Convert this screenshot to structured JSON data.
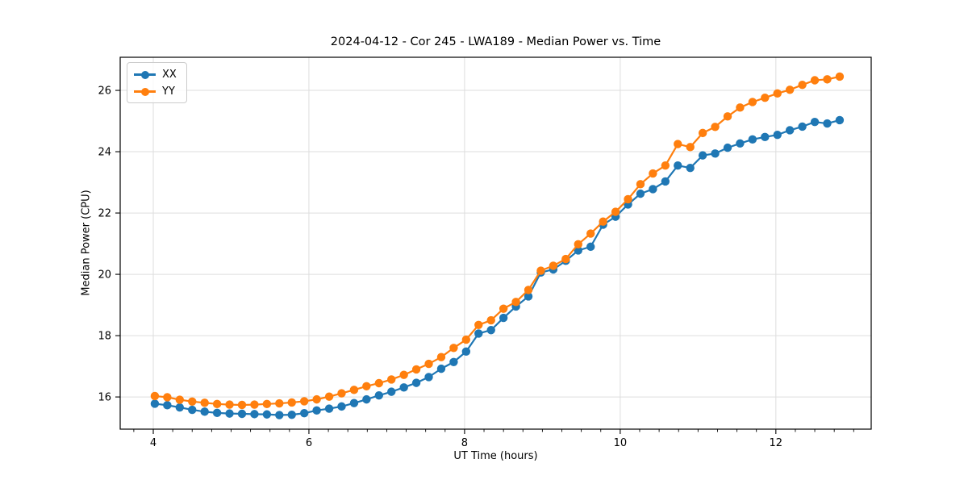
{
  "chart_data": {
    "type": "line",
    "title": "2024-04-12 - Cor 245 - LWA189 - Median Power vs. Time",
    "xlabel": "UT Time (hours)",
    "ylabel": "Median Power (CPU)",
    "xlim": [
      3.575,
      13.225
    ],
    "ylim": [
      14.95,
      27.08
    ],
    "x_ticks": [
      4,
      6,
      8,
      10,
      12
    ],
    "y_ticks": [
      16,
      18,
      20,
      22,
      24,
      26
    ],
    "x_minor_tick_step": 0.25,
    "grid": true,
    "legend_position": "upper left",
    "x": [
      4.02,
      4.18,
      4.34,
      4.5,
      4.66,
      4.82,
      4.98,
      5.14,
      5.3,
      5.46,
      5.62,
      5.78,
      5.94,
      6.1,
      6.26,
      6.42,
      6.58,
      6.74,
      6.9,
      7.06,
      7.22,
      7.38,
      7.54,
      7.7,
      7.86,
      8.02,
      8.18,
      8.34,
      8.5,
      8.66,
      8.82,
      8.98,
      9.14,
      9.3,
      9.46,
      9.62,
      9.78,
      9.94,
      10.1,
      10.26,
      10.42,
      10.58,
      10.74,
      10.9,
      11.06,
      11.22,
      11.38,
      11.54,
      11.7,
      11.86,
      12.02,
      12.18,
      12.34,
      12.5,
      12.66,
      12.82
    ],
    "series": [
      {
        "name": "XX",
        "color": "#1f77b4",
        "marker": "circle",
        "values": [
          15.78,
          15.73,
          15.66,
          15.58,
          15.52,
          15.48,
          15.46,
          15.45,
          15.44,
          15.43,
          15.41,
          15.42,
          15.47,
          15.56,
          15.62,
          15.69,
          15.8,
          15.92,
          16.05,
          16.17,
          16.31,
          16.46,
          16.65,
          16.92,
          17.14,
          17.48,
          18.07,
          18.18,
          18.58,
          18.95,
          19.28,
          20.06,
          20.16,
          20.44,
          20.78,
          20.9,
          21.62,
          21.88,
          22.28,
          22.63,
          22.78,
          23.03,
          23.55,
          23.47,
          23.88,
          23.94,
          24.13,
          24.27,
          24.4,
          24.48,
          24.55,
          24.7,
          24.82,
          24.97,
          24.92,
          25.03
        ]
      },
      {
        "name": "YY",
        "color": "#ff7f0e",
        "marker": "circle",
        "values": [
          16.03,
          15.99,
          15.91,
          15.85,
          15.81,
          15.77,
          15.75,
          15.74,
          15.75,
          15.77,
          15.79,
          15.82,
          15.86,
          15.92,
          16.01,
          16.12,
          16.23,
          16.35,
          16.45,
          16.57,
          16.72,
          16.9,
          17.08,
          17.3,
          17.6,
          17.87,
          18.35,
          18.5,
          18.88,
          19.1,
          19.49,
          20.12,
          20.28,
          20.5,
          20.98,
          21.33,
          21.72,
          22.04,
          22.45,
          22.94,
          23.29,
          23.55,
          24.25,
          24.15,
          24.61,
          24.81,
          25.15,
          25.44,
          25.62,
          25.76,
          25.9,
          26.02,
          26.18,
          26.33,
          26.36,
          26.45
        ]
      }
    ]
  },
  "colors": {
    "grid": "#dddddd",
    "spine": "#000000",
    "tick": "#000000",
    "text": "#000000",
    "legend_border": "#cccccc",
    "background": "#ffffff"
  }
}
